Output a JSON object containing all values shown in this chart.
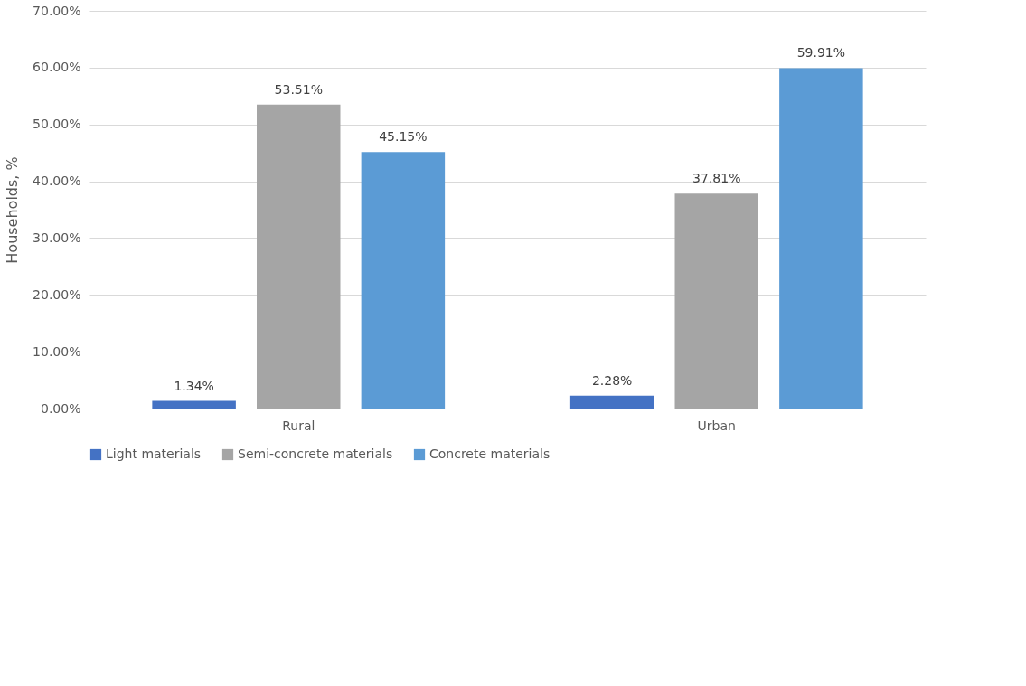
{
  "chart_data": {
    "type": "bar",
    "ylabel": "Households, %",
    "categories": [
      "Rural",
      "Urban"
    ],
    "series": [
      {
        "name": "Light materials",
        "color": "#4472c4",
        "values": [
          1.34,
          2.28
        ],
        "value_labels": [
          "1.34%",
          "2.28%"
        ]
      },
      {
        "name": "Semi-concrete materials",
        "color": "#a5a5a5",
        "values": [
          53.51,
          37.81
        ],
        "value_labels": [
          "53.51%",
          "37.81%"
        ]
      },
      {
        "name": "Concrete materials",
        "color": "#5b9bd5",
        "values": [
          45.15,
          59.91
        ],
        "value_labels": [
          "45.15%",
          "59.91%"
        ]
      }
    ],
    "ylim": [
      0,
      70
    ],
    "yticks": [
      {
        "value": 0,
        "label": "0.00%"
      },
      {
        "value": 10,
        "label": "10.00%"
      },
      {
        "value": 20,
        "label": "20.00%"
      },
      {
        "value": 30,
        "label": "30.00%"
      },
      {
        "value": 40,
        "label": "40.00%"
      },
      {
        "value": 50,
        "label": "50.00%"
      },
      {
        "value": 60,
        "label": "60.00%"
      },
      {
        "value": 70,
        "label": "70.00%"
      }
    ],
    "grid": "y",
    "legend": "bottom"
  }
}
